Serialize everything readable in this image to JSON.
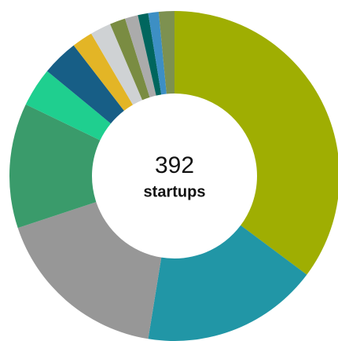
{
  "chart_data": {
    "type": "donut",
    "center_value": 392,
    "center_label": "startups",
    "values": [
      138,
      68,
      68,
      48,
      15,
      14,
      8,
      8,
      6,
      5,
      4,
      4,
      6
    ],
    "colors": [
      "#9fae02",
      "#2196a6",
      "#979797",
      "#3a9b6b",
      "#1fcf8f",
      "#175e86",
      "#e3b526",
      "#cfd2d4",
      "#7a8c42",
      "#ababab",
      "#00665e",
      "#3d8fc4",
      "#7d9150"
    ]
  }
}
